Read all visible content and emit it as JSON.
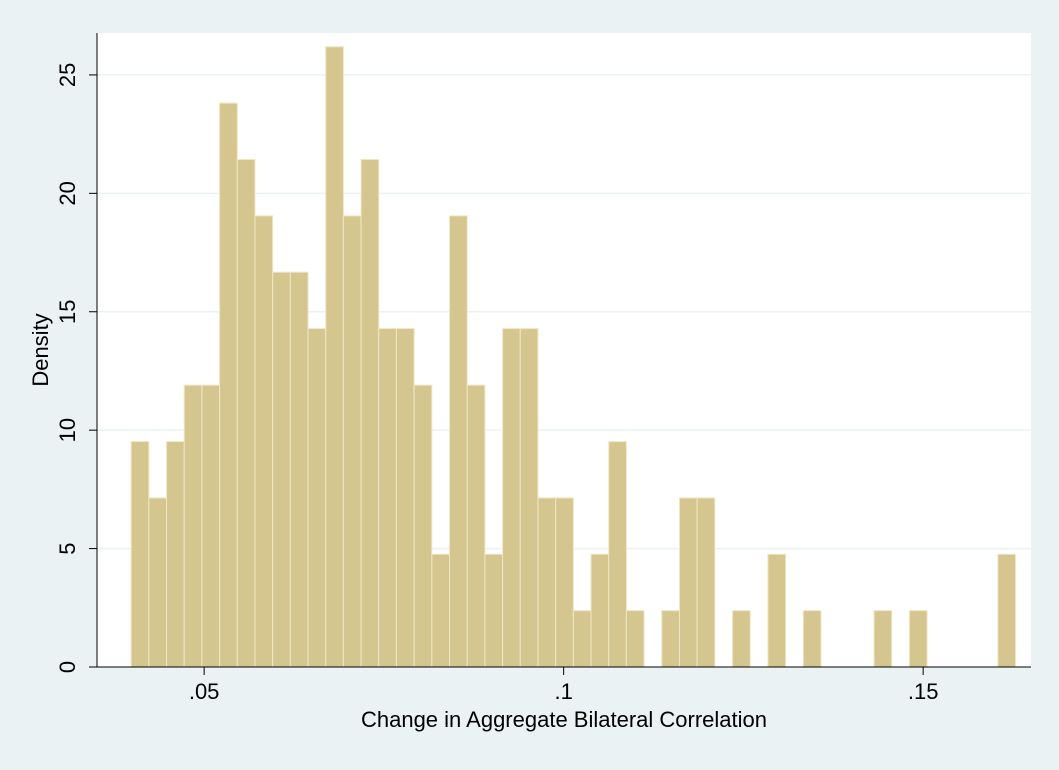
{
  "chart_data": {
    "type": "histogram",
    "x_label": "Change in Aggregate Bilateral Correlation",
    "y_label": "Density",
    "color": "#d5c68f",
    "bins": [
      0.03985,
      0.04231,
      0.04477,
      0.04723,
      0.04969,
      0.05215,
      0.05461,
      0.05707,
      0.05953,
      0.06199,
      0.06445,
      0.06691,
      0.06937,
      0.07183,
      0.07429,
      0.07675,
      0.07921,
      0.08167,
      0.08413,
      0.08659,
      0.08905,
      0.09151,
      0.09397,
      0.09643,
      0.09889,
      0.10135,
      0.10381,
      0.10627,
      0.10873,
      0.11119,
      0.11365,
      0.11611,
      0.11857,
      0.12103,
      0.12349,
      0.12595,
      0.12841,
      0.13087,
      0.13333,
      0.13579,
      0.13825,
      0.14071,
      0.14317,
      0.14563,
      0.14809,
      0.15055,
      0.15301,
      0.15547,
      0.15793,
      0.16039,
      0.16285
    ],
    "values": [
      9.52,
      7.14,
      9.52,
      11.9,
      11.9,
      23.81,
      21.43,
      19.05,
      16.67,
      16.67,
      14.29,
      26.19,
      19.05,
      21.43,
      14.29,
      14.29,
      11.9,
      4.76,
      19.05,
      11.9,
      4.76,
      14.29,
      14.29,
      7.14,
      7.14,
      2.38,
      4.76,
      9.52,
      2.38,
      0,
      2.38,
      7.14,
      7.14,
      0,
      2.38,
      0,
      4.76,
      0,
      2.38,
      0,
      0,
      0,
      2.38,
      0,
      2.38,
      0,
      0,
      0,
      0,
      4.76
    ],
    "xlim": [
      0.0351,
      0.165
    ],
    "ylim": [
      0,
      26.77
    ],
    "xticks": [
      {
        "value": 0.05,
        "label": ".05"
      },
      {
        "value": 0.1,
        "label": ".1"
      },
      {
        "value": 0.15,
        "label": ".15"
      }
    ],
    "yticks": [
      0,
      5,
      10,
      15,
      20,
      25
    ],
    "grid": true
  }
}
